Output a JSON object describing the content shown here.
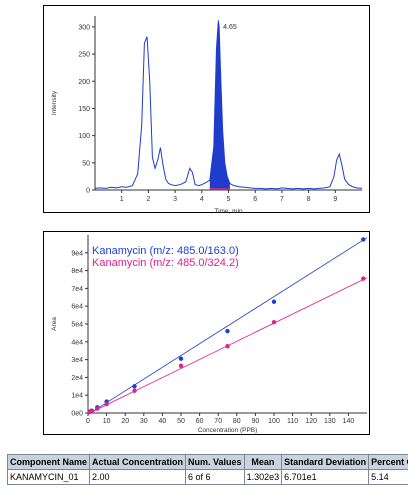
{
  "chart_data": [
    {
      "type": "line",
      "xlabel": "Time, min",
      "ylabel": "Intensity",
      "xlim": [
        0,
        10
      ],
      "ylim": [
        0,
        320
      ],
      "x_ticks": [
        "1",
        "2",
        "3",
        "4",
        "5",
        "6",
        "7",
        "8",
        "9"
      ],
      "y_ticks": [
        "0",
        "50",
        "100",
        "150",
        "200",
        "250",
        "300"
      ],
      "peak_label": "4.65",
      "colors": {
        "trace": "#1f3ccc",
        "filled_peak": "#1f3ccc",
        "baseline": "#e0218a"
      },
      "series": [
        {
          "x": [
            0.0,
            0.2,
            0.4,
            0.6,
            0.8,
            1.0,
            1.2,
            1.4,
            1.6,
            1.75,
            1.85,
            1.95,
            2.05,
            2.15,
            2.25,
            2.35,
            2.45,
            2.55,
            2.65,
            2.75,
            2.85,
            3.0,
            3.2,
            3.4,
            3.55,
            3.65,
            3.75,
            3.9,
            4.1,
            4.3,
            4.45,
            4.55,
            4.62,
            4.65,
            4.7,
            4.78,
            4.86,
            4.95,
            5.05,
            5.2,
            5.4,
            5.6,
            5.8,
            6.0,
            6.2,
            6.4,
            6.6,
            6.8,
            7.0,
            7.2,
            7.4,
            7.6,
            7.8,
            8.0,
            8.2,
            8.4,
            8.6,
            8.8,
            8.95,
            9.05,
            9.15,
            9.25,
            9.35,
            9.5,
            9.65,
            9.8,
            10.0
          ],
          "y": [
            3,
            4,
            3,
            5,
            4,
            6,
            5,
            8,
            30,
            120,
            270,
            282,
            200,
            60,
            40,
            55,
            78,
            45,
            20,
            12,
            10,
            8,
            10,
            15,
            40,
            32,
            10,
            8,
            12,
            18,
            80,
            260,
            312,
            300,
            220,
            110,
            50,
            25,
            12,
            8,
            6,
            5,
            4,
            3,
            3,
            2,
            3,
            2,
            4,
            3,
            2,
            3,
            2,
            3,
            2,
            3,
            4,
            6,
            25,
            55,
            66,
            45,
            20,
            10,
            6,
            4,
            3
          ]
        }
      ]
    },
    {
      "type": "scatter",
      "xlabel": "Concentration (PPB)",
      "ylabel": "Area",
      "xlim": [
        0,
        150
      ],
      "ylim": [
        0,
        100000
      ],
      "x_ticks": [
        "0",
        "10",
        "20",
        "30",
        "40",
        "50",
        "60",
        "70",
        "80",
        "90",
        "100",
        "110",
        "120",
        "130",
        "140"
      ],
      "y_ticks": [
        "0e0",
        "1e4",
        "2e4",
        "3e4",
        "4e4",
        "5e4",
        "6e4",
        "7e4",
        "8e4",
        "9e4"
      ],
      "series": [
        {
          "name": "Kanamycin (m/z: 485.0/163.0)",
          "color": "#1a3fd6",
          "x": [
            1,
            2,
            5,
            10,
            25,
            50,
            75,
            100,
            148
          ],
          "y": [
            700,
            1300,
            3200,
            6400,
            15000,
            30500,
            46000,
            62500,
            97500
          ],
          "fit": [
            [
              0,
              -800
            ],
            [
              150,
              98500
            ]
          ]
        },
        {
          "name": "Kanamycin (m/z: 485.0/324.2)",
          "color": "#e0218a",
          "x": [
            1,
            2,
            5,
            10,
            25,
            50,
            75,
            100,
            148
          ],
          "y": [
            500,
            1000,
            2500,
            5000,
            12500,
            26500,
            37500,
            51000,
            75500
          ],
          "fit": [
            [
              0,
              -500
            ],
            [
              150,
              76000
            ]
          ]
        }
      ]
    }
  ],
  "table": {
    "headers": [
      "Component Name",
      "Actual Concentration",
      "Num. Values",
      "Mean",
      "Standard Deviation",
      "Percent CV"
    ],
    "rows": [
      [
        "KANAMYCIN_01",
        "2.00",
        "6 of 6",
        "1.302e3",
        "6.701e1",
        "5.14"
      ]
    ]
  }
}
